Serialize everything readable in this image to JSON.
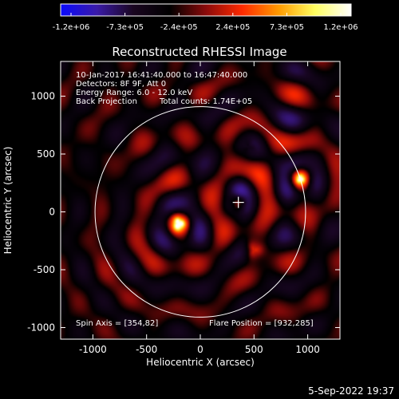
{
  "colorbar": {
    "tick_labels": [
      "-1.2e+06",
      "-7.3e+05",
      "-2.4e+05",
      "2.4e+05",
      "7.3e+05",
      "1.2e+06"
    ],
    "range": [
      -1200000,
      1200000
    ],
    "colors": [
      "#0a0aff",
      "#3a1aa8",
      "#1a0620",
      "#000000",
      "#8a0a0a",
      "#ff2a00",
      "#ff9a00",
      "#ffff60",
      "#ffffff"
    ]
  },
  "chart_data": {
    "type": "heatmap",
    "title": "Reconstructed RHESSI Image",
    "xlabel": "Heliocentric X (arcsec)",
    "ylabel": "Heliocentric Y (arcsec)",
    "xlim": [
      -1300,
      1300
    ],
    "ylim": [
      -1100,
      1300
    ],
    "x_ticks": [
      -1000,
      -500,
      0,
      500,
      1000
    ],
    "x_tick_labels": [
      "-1000",
      "-500",
      "0",
      "500",
      "1000"
    ],
    "y_ticks": [
      -1000,
      -500,
      0,
      500,
      1000
    ],
    "y_tick_labels": [
      "-1000",
      "-500",
      "0",
      "500",
      "1000"
    ],
    "solar_limb": {
      "center": [
        0,
        0
      ],
      "radius_arcsec": 980
    },
    "sources": [
      {
        "x": -200,
        "y": -100,
        "intensity": 1.0
      },
      {
        "x": 930,
        "y": 285,
        "intensity": 1.0
      },
      {
        "x": 354,
        "y": 82,
        "intensity": 0.6
      },
      {
        "x": 500,
        "y": -330,
        "intensity": 0.4
      },
      {
        "x": 450,
        "y": 560,
        "intensity": 0.35
      }
    ],
    "spin_axis": [
      354,
      82
    ],
    "flare_position": [
      932,
      285
    ],
    "annotations": {
      "time_range": "10-Jan-2017 16:41:40.000 to 16:47:40.000",
      "detectors": "Detectors: 8F 9F, Att 0",
      "energy": "Energy Range: 6.0 - 12.0 keV",
      "method": "Back Projection",
      "counts": "Total counts: 1.74E+05",
      "spin_axis": "Spin Axis = [354,82]",
      "flare_position": "Flare Position = [932,285]"
    }
  },
  "footer": {
    "timestamp": "5-Sep-2022 19:37"
  }
}
